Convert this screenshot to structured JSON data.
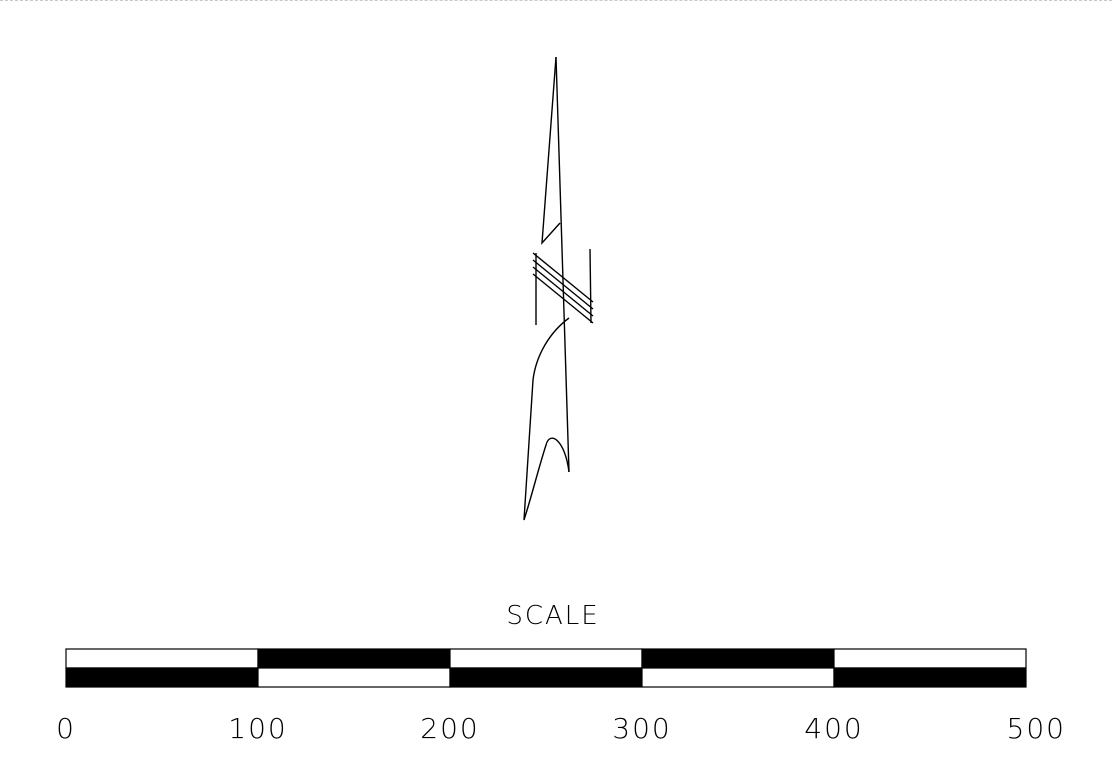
{
  "north_arrow": {
    "label": "N"
  },
  "scale_bar": {
    "title": "SCALE",
    "tick_labels": [
      "0",
      "100",
      "200",
      "300",
      "400",
      "500"
    ],
    "segments": 5,
    "colors": {
      "dark": "#000000",
      "light": "#ffffff"
    }
  },
  "colors": {
    "background": "#ffffff",
    "ink": "#000000"
  }
}
